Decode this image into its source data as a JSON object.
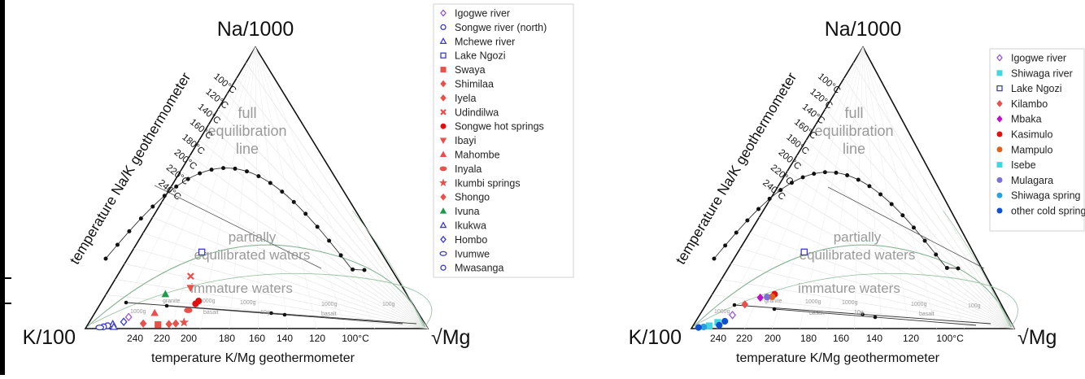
{
  "chart_data": [
    {
      "type": "scatter",
      "panel": "left",
      "apex_labels": {
        "top": "Na/1000",
        "left": "K/100",
        "right": "√Mg"
      },
      "xlabel": "temperature K/Mg geothermometer",
      "side_label": "temperature Na/K geothermometer",
      "region_labels": {
        "full1": "full",
        "full2": "equilibration",
        "full3": "line",
        "partial1": "partially",
        "partial2": "equilibrated waters",
        "immature": "immature waters"
      },
      "nak_ticks": [
        "100°C",
        "120°C",
        "140°C",
        "160°C",
        "180°C",
        "200°C",
        "220°C",
        "240°C"
      ],
      "kmg_ticks": [
        "240",
        "220",
        "200",
        "180",
        "160",
        "140",
        "120",
        "100°C"
      ],
      "rock_labels": [
        "granite",
        "1000g",
        "1000g",
        "basalt",
        "1000g",
        "10g",
        "1000g",
        "basalt",
        "100g"
      ],
      "legend": [
        {
          "label": "Igogwe river",
          "color": "#9b59d0",
          "marker": "diamond-open"
        },
        {
          "label": "Songwe river (north)",
          "color": "#3a3ad0",
          "marker": "circle-open"
        },
        {
          "label": "Mchewe river",
          "color": "#3a3ad0",
          "marker": "triangle-open"
        },
        {
          "label": "Lake Ngozi",
          "color": "#3a3ad0",
          "marker": "square-open"
        },
        {
          "label": "Swaya",
          "color": "#e8504a",
          "marker": "square"
        },
        {
          "label": "Shimilaa",
          "color": "#e8504a",
          "marker": "diamond"
        },
        {
          "label": "Iyela",
          "color": "#e8504a",
          "marker": "diamond"
        },
        {
          "label": "Udindilwa",
          "color": "#e8504a",
          "marker": "cross"
        },
        {
          "label": "Songwe hot springs",
          "color": "#e01010",
          "marker": "circle"
        },
        {
          "label": "Ibayi",
          "color": "#e8504a",
          "marker": "triangle-down"
        },
        {
          "label": "Mahombe",
          "color": "#e8504a",
          "marker": "triangle"
        },
        {
          "label": "Inyala",
          "color": "#e8504a",
          "marker": "ellipse"
        },
        {
          "label": "Ikumbi springs",
          "color": "#e8504a",
          "marker": "star"
        },
        {
          "label": "Shongo",
          "color": "#e8504a",
          "marker": "diamond"
        },
        {
          "label": "Ivuna",
          "color": "#1f9a4a",
          "marker": "triangle"
        },
        {
          "label": "Ikukwa",
          "color": "#3a3ad0",
          "marker": "triangle-open"
        },
        {
          "label": "Hombo",
          "color": "#3a3ad0",
          "marker": "diamond-open"
        },
        {
          "label": "Ivumwe",
          "color": "#3a3ad0",
          "marker": "ellipse-open"
        },
        {
          "label": "Mwasanga",
          "color": "#3a3ad0",
          "marker": "circle-open"
        }
      ],
      "points": [
        {
          "series": "Lake Ngozi",
          "x": 0.205,
          "y": 0.272
        },
        {
          "series": "Udindilwa",
          "x": 0.215,
          "y": 0.186
        },
        {
          "series": "Ibayi",
          "x": 0.235,
          "y": 0.145
        },
        {
          "series": "Ivuna",
          "x": 0.173,
          "y": 0.122
        },
        {
          "series": "Songwe hot springs",
          "x": 0.282,
          "y": 0.098
        },
        {
          "series": "Songwe hot springs",
          "x": 0.278,
          "y": 0.088
        },
        {
          "series": "Inyala",
          "x": 0.268,
          "y": 0.065
        },
        {
          "series": "Mahombe",
          "x": 0.175,
          "y": 0.055
        },
        {
          "series": "Ikumbi springs",
          "x": 0.277,
          "y": 0.022
        },
        {
          "series": "Shongo",
          "x": 0.255,
          "y": 0.018
        },
        {
          "series": "Iyela",
          "x": 0.236,
          "y": 0.016
        },
        {
          "series": "Swaya",
          "x": 0.205,
          "y": 0.014
        },
        {
          "series": "Shimilaa",
          "x": 0.16,
          "y": 0.018
        },
        {
          "series": "Igogwe river",
          "x": 0.106,
          "y": 0.041
        },
        {
          "series": "Hombo",
          "x": 0.1,
          "y": 0.024
        },
        {
          "series": "Mchewe river",
          "x": 0.072,
          "y": 0.016
        },
        {
          "series": "Songwe river (north)",
          "x": 0.06,
          "y": 0.01
        },
        {
          "series": "Mwasanga",
          "x": 0.05,
          "y": 0.006
        },
        {
          "series": "Ikukwa",
          "x": 0.08,
          "y": 0.006
        },
        {
          "series": "Ivumwe",
          "x": 0.04,
          "y": 0.004
        }
      ]
    },
    {
      "type": "scatter",
      "panel": "right",
      "apex_labels": {
        "top": "Na/1000",
        "left": "K/100",
        "right": "√Mg"
      },
      "xlabel": "temperature K/Mg geothermometer",
      "side_label": "temperature Na/K geothermometer",
      "region_labels": {
        "full1": "full",
        "full2": "equilibration",
        "full3": "line",
        "partial1": "partially",
        "partial2": "equilibrated waters",
        "immature": "immature waters"
      },
      "nak_ticks": [
        "100°C",
        "120°C",
        "140°C",
        "160°C",
        "180°C",
        "200°C",
        "220°C",
        "240°C"
      ],
      "kmg_ticks": [
        "240",
        "220",
        "200",
        "180",
        "160",
        "140",
        "120",
        "100°C"
      ],
      "rock_labels": [
        "granite",
        "1000g",
        "1000g",
        "basalt",
        "1000g",
        "10g",
        "1000g",
        "basalt",
        "100g"
      ],
      "legend": [
        {
          "label": "Igogwe river",
          "color": "#9b59d0",
          "marker": "diamond-open"
        },
        {
          "label": "Shiwaga river",
          "color": "#40d8e0",
          "marker": "square"
        },
        {
          "label": "Lake Ngozi",
          "color": "#3a3ad0",
          "marker": "square-open"
        },
        {
          "label": "Kilambo",
          "color": "#e8504a",
          "marker": "diamond"
        },
        {
          "label": "Mbaka",
          "color": "#c010c8",
          "marker": "diamond"
        },
        {
          "label": "Kasimulo",
          "color": "#e01010",
          "marker": "circle"
        },
        {
          "label": "Mampulo",
          "color": "#e06020",
          "marker": "circle"
        },
        {
          "label": "Isebe",
          "color": "#40d8e0",
          "marker": "square"
        },
        {
          "label": "Mulagara",
          "color": "#7a70d8",
          "marker": "circle"
        },
        {
          "label": "Shiwaga spring",
          "color": "#2aa0e0",
          "marker": "circle"
        },
        {
          "label": "other cold springs",
          "color": "#1050d0",
          "marker": "circle"
        }
      ],
      "points": [
        {
          "series": "Lake Ngozi",
          "x": 0.205,
          "y": 0.272
        },
        {
          "series": "Kasimulo",
          "x": 0.193,
          "y": 0.122
        },
        {
          "series": "Mampulo",
          "x": 0.19,
          "y": 0.113
        },
        {
          "series": "Mulagara",
          "x": 0.175,
          "y": 0.112
        },
        {
          "series": "Mbaka",
          "x": 0.155,
          "y": 0.11
        },
        {
          "series": "Kilambo",
          "x": 0.12,
          "y": 0.086
        },
        {
          "series": "Igogwe river",
          "x": 0.102,
          "y": 0.048
        },
        {
          "series": "Isebe",
          "x": 0.07,
          "y": 0.022
        },
        {
          "series": "Shiwaga river",
          "x": 0.05,
          "y": 0.01
        },
        {
          "series": "Shiwaga spring",
          "x": 0.035,
          "y": 0.006
        },
        {
          "series": "other cold springs",
          "x": 0.09,
          "y": 0.026
        },
        {
          "series": "other cold springs",
          "x": 0.08,
          "y": 0.012
        },
        {
          "series": "other cold springs",
          "x": 0.02,
          "y": 0.004
        }
      ]
    }
  ]
}
